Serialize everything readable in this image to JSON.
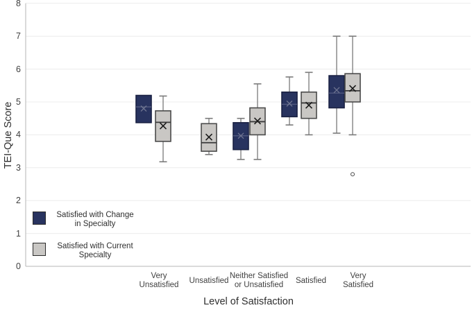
{
  "chart_data": {
    "type": "boxplot",
    "title": "",
    "xlabel": "Level of Satisfaction",
    "ylabel": "TEI-Que Score",
    "ylim": [
      0,
      8
    ],
    "ytick_labels": [
      "8",
      "7",
      "6",
      "5",
      "4",
      "3",
      "2",
      "1",
      "0"
    ],
    "grid": "horizontal",
    "legend_position": "inside-lower-left",
    "categories": [
      {
        "label": "Very Unsatisfied",
        "lines": [
          "Very",
          "Unsatisfied"
        ]
      },
      {
        "label": "Unsatisfied",
        "lines": [
          "Unsatisfied"
        ]
      },
      {
        "label": "Neither Satisfied or Unsatisfied",
        "lines": [
          "Neither Satisfied",
          "or Unsatisfied"
        ]
      },
      {
        "label": "Satisfied",
        "lines": [
          "Satisfied"
        ]
      },
      {
        "label": "Very Satisfied",
        "lines": [
          "Very",
          "Satisfied"
        ]
      }
    ],
    "legend": [
      {
        "name": "Satisfied with Change in Specialty",
        "lines": [
          "Satisfied with Change",
          "in Specialty"
        ],
        "color": "#28335f"
      },
      {
        "name": "Satisfied with Current Specialty",
        "lines": [
          "Satisfied with Current",
          "Specialty"
        ],
        "color": "#c9c7c4"
      }
    ],
    "series": [
      {
        "name": "Satisfied with Change in Specialty",
        "fill": "#28335f",
        "stroke": "#1a2142",
        "median_color": "#5a6386",
        "mean_color": "#6e7490",
        "boxes": [
          {
            "min": 4.37,
            "q1": 4.37,
            "median": 4.85,
            "q3": 5.2,
            "max": 5.2,
            "mean": 4.8
          },
          null,
          {
            "min": 3.25,
            "q1": 3.55,
            "median": 3.97,
            "q3": 4.37,
            "max": 4.5,
            "mean": 3.97
          },
          {
            "min": 4.3,
            "q1": 4.55,
            "median": 4.93,
            "q3": 5.3,
            "max": 5.76,
            "mean": 4.95
          },
          {
            "min": 4.05,
            "q1": 4.82,
            "median": 5.27,
            "q3": 5.8,
            "max": 7.0,
            "mean": 5.36
          }
        ]
      },
      {
        "name": "Satisfied with Current Specialty",
        "fill": "#c9c7c4",
        "stroke": "#4a4a4a",
        "median_color": "#3a3a3a",
        "mean_color": "#1a1a1a",
        "boxes": [
          {
            "min": 3.18,
            "q1": 3.8,
            "median": 4.38,
            "q3": 4.73,
            "max": 5.18,
            "mean": 4.27
          },
          {
            "min": 3.4,
            "q1": 3.5,
            "median": 3.76,
            "q3": 4.34,
            "max": 4.5,
            "mean": 3.93
          },
          {
            "min": 3.25,
            "q1": 4.0,
            "median": 4.4,
            "q3": 4.82,
            "max": 5.55,
            "mean": 4.42
          },
          {
            "min": 4.0,
            "q1": 4.5,
            "median": 4.97,
            "q3": 5.3,
            "max": 5.9,
            "mean": 4.9
          },
          {
            "min": 4.0,
            "q1": 5.0,
            "median": 5.34,
            "q3": 5.86,
            "max": 7.0,
            "mean": 5.41,
            "outliers": [
              2.8
            ]
          }
        ]
      }
    ],
    "colors": {
      "grid": "#ececec",
      "axis": "#b5b5b5",
      "whisker": "#7a7a7a",
      "outlier_stroke": "#4a4a4a"
    }
  }
}
